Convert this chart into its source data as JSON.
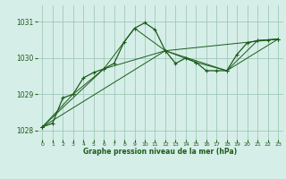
{
  "title": "Graphe pression niveau de la mer (hPa)",
  "bg_color": "#d6eee8",
  "line_color": "#1a5c1a",
  "grid_color": "#a0c8b8",
  "xlim": [
    -0.5,
    23.5
  ],
  "ylim": [
    1027.75,
    1031.45
  ],
  "yticks": [
    1028,
    1029,
    1030,
    1031
  ],
  "xticks": [
    0,
    1,
    2,
    3,
    4,
    5,
    6,
    7,
    8,
    9,
    10,
    11,
    12,
    13,
    14,
    15,
    16,
    17,
    18,
    19,
    20,
    21,
    22,
    23
  ],
  "series": [
    {
      "x": [
        0,
        1,
        2,
        3,
        4,
        5,
        6,
        7,
        8,
        9,
        10,
        11,
        12,
        13,
        14,
        15,
        16,
        17,
        18,
        19,
        20,
        21,
        22,
        23
      ],
      "y": [
        1028.1,
        1028.2,
        1028.9,
        1029.0,
        1029.45,
        1029.6,
        1029.7,
        1029.85,
        1030.45,
        1030.82,
        1030.97,
        1030.78,
        1030.2,
        1029.85,
        1030.0,
        1029.88,
        1029.65,
        1029.65,
        1029.65,
        1030.1,
        1030.42,
        1030.48,
        1030.5,
        1030.52
      ]
    },
    {
      "x": [
        0,
        3,
        6,
        9,
        12,
        15,
        18,
        21,
        23
      ],
      "y": [
        1028.1,
        1029.0,
        1029.7,
        1030.82,
        1030.2,
        1029.88,
        1029.65,
        1030.48,
        1030.52
      ]
    },
    {
      "x": [
        0,
        6,
        12,
        18,
        23
      ],
      "y": [
        1028.1,
        1029.7,
        1030.2,
        1029.65,
        1030.52
      ]
    },
    {
      "x": [
        0,
        12,
        23
      ],
      "y": [
        1028.1,
        1030.2,
        1030.52
      ]
    }
  ],
  "fig_width": 3.2,
  "fig_height": 2.0,
  "dpi": 100
}
